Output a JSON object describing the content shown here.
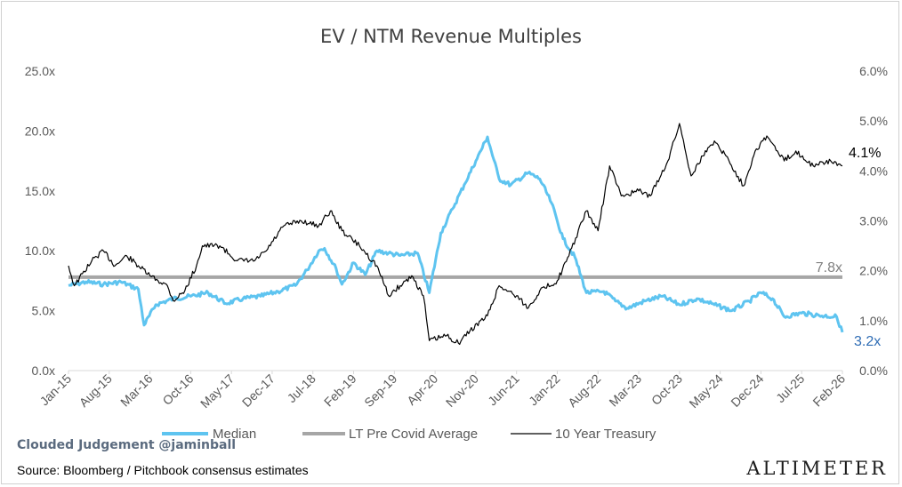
{
  "chart_data": {
    "type": "line",
    "title": "EV / NTM Revenue Multiples",
    "x_tick_labels": [
      "Jan-15",
      "Aug-15",
      "Mar-16",
      "Oct-16",
      "May-17",
      "Dec-17",
      "Jul-18",
      "Feb-19",
      "Sep-19",
      "Apr-20",
      "Nov-20",
      "Jun-21",
      "Jan-22",
      "Aug-22",
      "Mar-23",
      "Oct-23",
      "May-24",
      "Dec-24",
      "Jul-25",
      "Feb-26"
    ],
    "x_range": [
      "2015-01",
      "2026-02"
    ],
    "left_axis": {
      "ticks": [
        "0.0x",
        "5.0x",
        "10.0x",
        "15.0x",
        "20.0x",
        "25.0x"
      ],
      "ylim": [
        0,
        25
      ]
    },
    "right_axis": {
      "ticks": [
        "0.0%",
        "1.0%",
        "2.0%",
        "3.0%",
        "4.0%",
        "5.0%",
        "6.0%"
      ],
      "ylim": [
        0,
        6
      ]
    },
    "series": [
      {
        "name": "Median",
        "axis": "left",
        "color": "#5ec4f0",
        "points": [
          [
            "2015-01",
            7.1
          ],
          [
            "2015-04",
            7.4
          ],
          [
            "2015-07",
            7.2
          ],
          [
            "2015-10",
            7.4
          ],
          [
            "2016-01",
            6.8
          ],
          [
            "2016-02",
            3.8
          ],
          [
            "2016-04",
            5.5
          ],
          [
            "2016-07",
            6.0
          ],
          [
            "2016-10",
            6.2
          ],
          [
            "2017-01",
            6.5
          ],
          [
            "2017-04",
            5.6
          ],
          [
            "2017-07",
            6.0
          ],
          [
            "2017-10",
            6.2
          ],
          [
            "2018-01",
            6.6
          ],
          [
            "2018-04",
            7.1
          ],
          [
            "2018-06",
            8.4
          ],
          [
            "2018-08",
            10.0
          ],
          [
            "2018-09",
            10.2
          ],
          [
            "2018-11",
            8.5
          ],
          [
            "2018-12",
            7.2
          ],
          [
            "2019-02",
            9.0
          ],
          [
            "2019-04",
            8.0
          ],
          [
            "2019-06",
            10.0
          ],
          [
            "2019-08",
            9.8
          ],
          [
            "2019-10",
            9.6
          ],
          [
            "2020-01",
            9.8
          ],
          [
            "2020-03",
            6.5
          ],
          [
            "2020-05",
            11.5
          ],
          [
            "2020-07",
            13.5
          ],
          [
            "2020-09",
            15.5
          ],
          [
            "2020-11",
            17.5
          ],
          [
            "2021-01",
            19.5
          ],
          [
            "2021-03",
            16.0
          ],
          [
            "2021-05",
            15.5
          ],
          [
            "2021-08",
            16.5
          ],
          [
            "2021-10",
            16.0
          ],
          [
            "2021-12",
            14.0
          ],
          [
            "2022-02",
            11.0
          ],
          [
            "2022-04",
            9.5
          ],
          [
            "2022-06",
            6.5
          ],
          [
            "2022-09",
            6.6
          ],
          [
            "2022-11",
            5.8
          ],
          [
            "2023-01",
            5.2
          ],
          [
            "2023-04",
            5.8
          ],
          [
            "2023-07",
            6.2
          ],
          [
            "2023-10",
            5.5
          ],
          [
            "2024-01",
            6.0
          ],
          [
            "2024-04",
            5.5
          ],
          [
            "2024-07",
            5.0
          ],
          [
            "2024-10",
            5.8
          ],
          [
            "2024-12",
            6.5
          ],
          [
            "2025-02",
            6.0
          ],
          [
            "2025-04",
            4.5
          ],
          [
            "2025-07",
            4.8
          ],
          [
            "2025-10",
            4.6
          ],
          [
            "2026-01",
            4.5
          ],
          [
            "2026-02",
            3.2
          ]
        ]
      },
      {
        "name": "LT Pre Covid Average",
        "axis": "left",
        "color": "#a6a6a6",
        "points": [
          [
            "2015-01",
            7.8
          ],
          [
            "2026-02",
            7.8
          ]
        ]
      },
      {
        "name": "10 Year Treasury",
        "axis": "right",
        "color": "#000000",
        "points": [
          [
            "2015-01",
            2.1
          ],
          [
            "2015-02",
            1.7
          ],
          [
            "2015-05",
            2.2
          ],
          [
            "2015-07",
            2.4
          ],
          [
            "2015-09",
            2.1
          ],
          [
            "2015-11",
            2.3
          ],
          [
            "2016-01",
            2.1
          ],
          [
            "2016-03",
            1.9
          ],
          [
            "2016-06",
            1.7
          ],
          [
            "2016-07",
            1.4
          ],
          [
            "2016-09",
            1.6
          ],
          [
            "2016-11",
            2.1
          ],
          [
            "2016-12",
            2.5
          ],
          [
            "2017-03",
            2.5
          ],
          [
            "2017-06",
            2.2
          ],
          [
            "2017-09",
            2.2
          ],
          [
            "2017-11",
            2.4
          ],
          [
            "2018-02",
            2.9
          ],
          [
            "2018-05",
            3.0
          ],
          [
            "2018-08",
            2.9
          ],
          [
            "2018-10",
            3.2
          ],
          [
            "2018-12",
            2.8
          ],
          [
            "2019-03",
            2.5
          ],
          [
            "2019-06",
            2.1
          ],
          [
            "2019-08",
            1.5
          ],
          [
            "2019-10",
            1.7
          ],
          [
            "2019-12",
            1.9
          ],
          [
            "2020-02",
            1.5
          ],
          [
            "2020-03",
            0.6
          ],
          [
            "2020-06",
            0.7
          ],
          [
            "2020-08",
            0.55
          ],
          [
            "2020-10",
            0.8
          ],
          [
            "2021-01",
            1.1
          ],
          [
            "2021-03",
            1.7
          ],
          [
            "2021-06",
            1.5
          ],
          [
            "2021-08",
            1.25
          ],
          [
            "2021-10",
            1.6
          ],
          [
            "2022-01",
            1.8
          ],
          [
            "2022-03",
            2.3
          ],
          [
            "2022-06",
            3.2
          ],
          [
            "2022-08",
            2.8
          ],
          [
            "2022-10",
            4.1
          ],
          [
            "2022-12",
            3.5
          ],
          [
            "2023-03",
            3.6
          ],
          [
            "2023-05",
            3.5
          ],
          [
            "2023-08",
            4.2
          ],
          [
            "2023-10",
            4.95
          ],
          [
            "2023-12",
            3.9
          ],
          [
            "2024-02",
            4.3
          ],
          [
            "2024-04",
            4.6
          ],
          [
            "2024-06",
            4.3
          ],
          [
            "2024-09",
            3.7
          ],
          [
            "2024-11",
            4.4
          ],
          [
            "2025-01",
            4.7
          ],
          [
            "2025-04",
            4.2
          ],
          [
            "2025-06",
            4.4
          ],
          [
            "2025-09",
            4.1
          ],
          [
            "2025-12",
            4.2
          ],
          [
            "2026-02",
            4.1
          ]
        ]
      }
    ],
    "end_labels": {
      "median": "3.2x",
      "average": "7.8x",
      "treasury": "4.1%"
    },
    "legend": {
      "position": "bottom",
      "items": [
        {
          "name": "Median",
          "color": "#5ec4f0"
        },
        {
          "name": "LT Pre Covid Average",
          "color": "#a6a6a6"
        },
        {
          "name": "10 Year Treasury",
          "color": "#000000"
        }
      ]
    },
    "grid": false
  },
  "footer": {
    "credit": "Clouded Judgement @jaminball",
    "source": "Source: Bloomberg / Pitchbook consensus estimates",
    "brand": "ALTIMETER"
  }
}
